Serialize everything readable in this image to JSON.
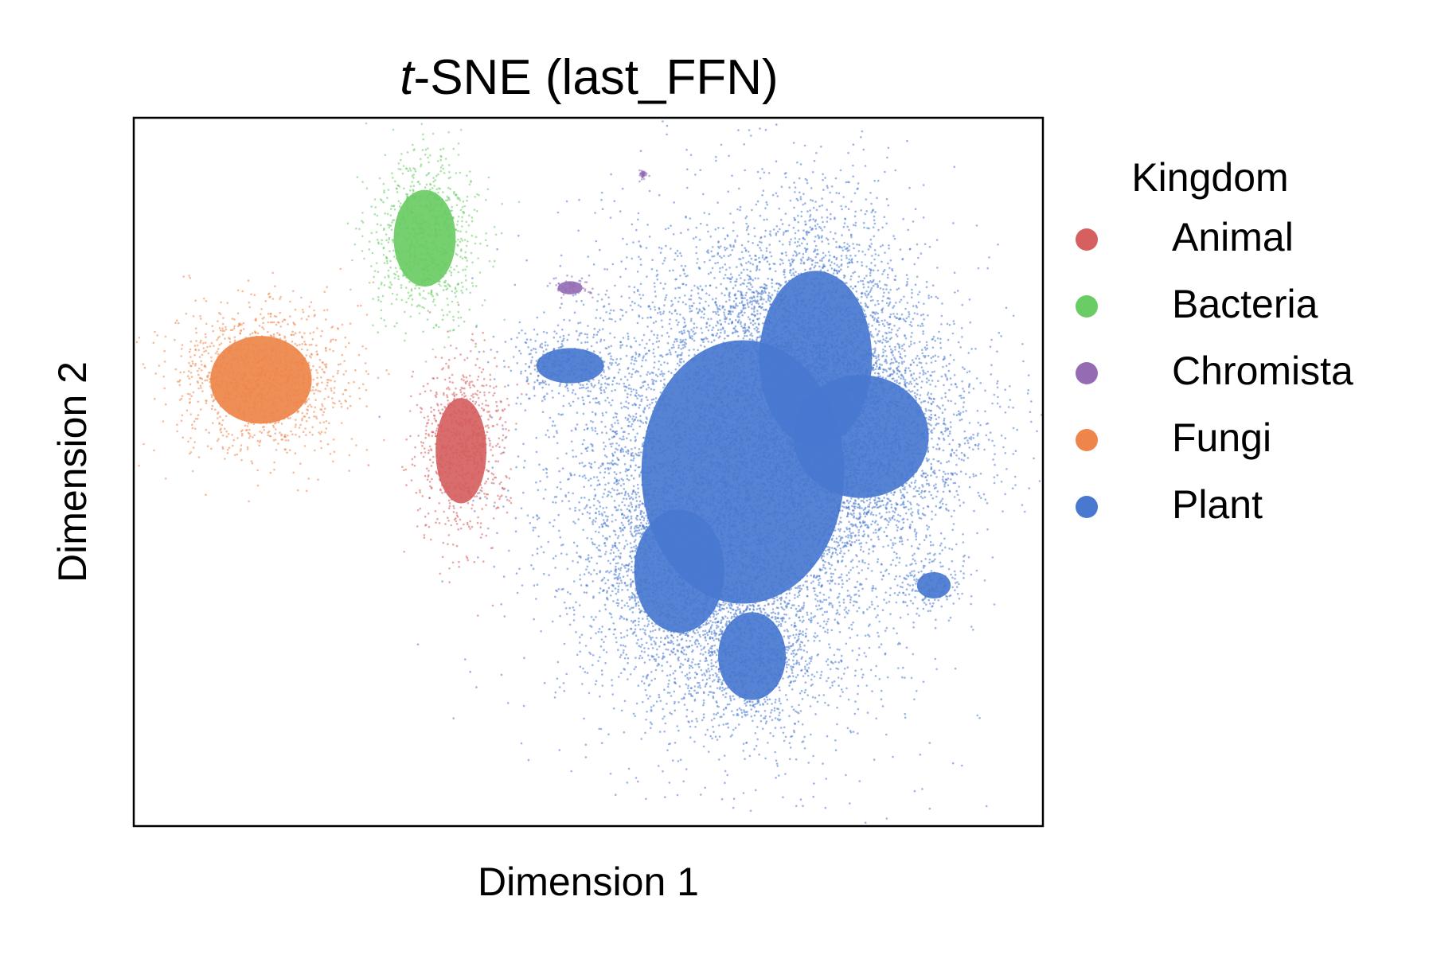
{
  "chart_data": {
    "type": "scatter",
    "title_italic": "t",
    "title_rest": "-SNE (last_FFN)",
    "xlabel": "Dimension 1",
    "ylabel": "Dimension 2",
    "xticks": "none",
    "yticks": "none",
    "grid": false,
    "xlim": [
      0,
      100
    ],
    "ylim": [
      0,
      100
    ],
    "legend": {
      "title": "Kingdom",
      "placement": "outside-right",
      "entries": [
        {
          "name": "Animal",
          "color": "#d65f5f"
        },
        {
          "name": "Bacteria",
          "color": "#6acc64"
        },
        {
          "name": "Chromista",
          "color": "#956cb4"
        },
        {
          "name": "Fungi",
          "color": "#ee854a"
        },
        {
          "name": "Plant",
          "color": "#4878d0"
        }
      ]
    },
    "series": [
      {
        "name": "Plant",
        "color": "#4878d0",
        "clusters": [
          {
            "cx": 67,
            "cy": 50,
            "rx": 18,
            "ry": 30
          },
          {
            "cx": 75,
            "cy": 66,
            "rx": 10,
            "ry": 20
          },
          {
            "cx": 80,
            "cy": 55,
            "rx": 12,
            "ry": 14
          },
          {
            "cx": 60,
            "cy": 36,
            "rx": 8,
            "ry": 14
          },
          {
            "cx": 68,
            "cy": 24,
            "rx": 6,
            "ry": 10
          },
          {
            "cx": 88,
            "cy": 34,
            "rx": 3,
            "ry": 3
          },
          {
            "cx": 48,
            "cy": 65,
            "rx": 6,
            "ry": 4
          }
        ]
      },
      {
        "name": "Bacteria",
        "color": "#6acc64",
        "clusters": [
          {
            "cx": 32,
            "cy": 83,
            "rx": 5.5,
            "ry": 11
          }
        ]
      },
      {
        "name": "Chromista",
        "color": "#956cb4",
        "clusters": [
          {
            "cx": 48,
            "cy": 76,
            "rx": 2.2,
            "ry": 1.5
          },
          {
            "cx": 56,
            "cy": 92,
            "rx": 0.3,
            "ry": 0.6
          }
        ]
      },
      {
        "name": "Fungi",
        "color": "#ee854a",
        "clusters": [
          {
            "cx": 14,
            "cy": 63,
            "rx": 9,
            "ry": 10
          }
        ]
      },
      {
        "name": "Animal",
        "color": "#d65f5f",
        "clusters": [
          {
            "cx": 36,
            "cy": 53,
            "rx": 4.5,
            "ry": 12
          }
        ]
      }
    ]
  }
}
